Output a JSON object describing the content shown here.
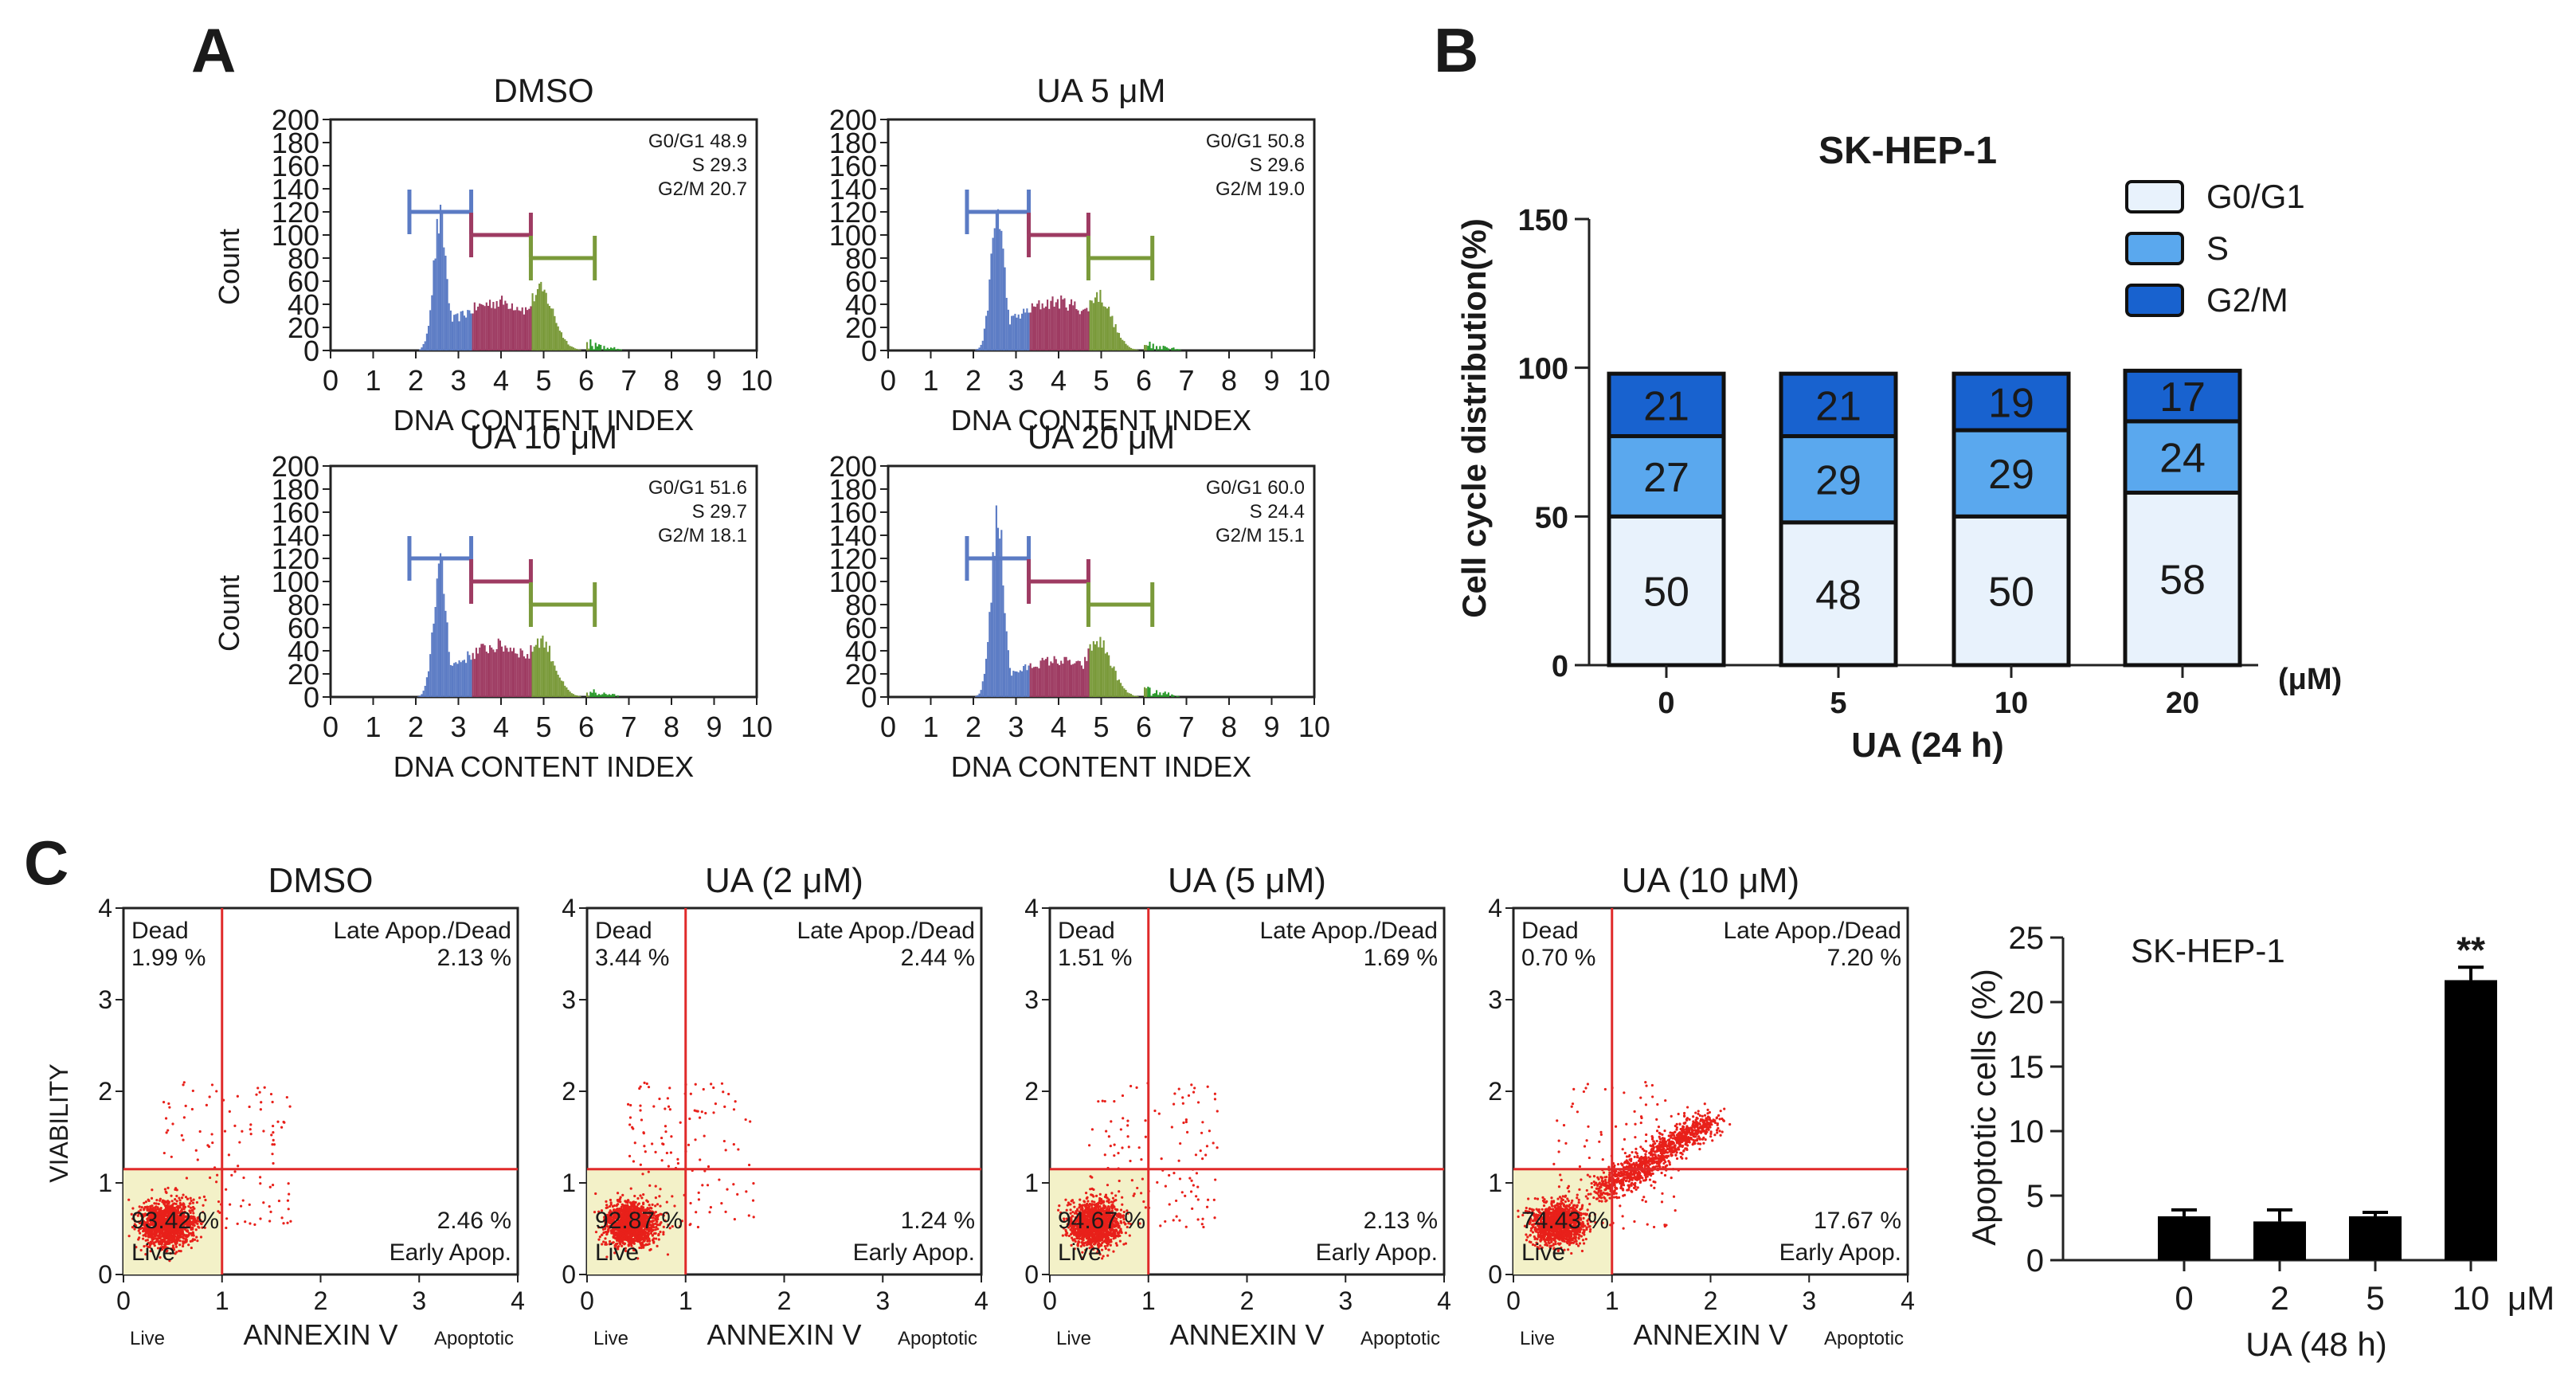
{
  "panel_labels": {
    "a": "A",
    "b": "B",
    "c": "C"
  },
  "colors": {
    "g1": "#5b7bc4",
    "s": "#9e3b62",
    "g2m": "#7a9a3a",
    "tail": "#2a9a2a",
    "g1_bar": "#e8f2fc",
    "s_bar": "#5aa8ee",
    "g2m_bar": "#1862cf",
    "dots": "#e8201a",
    "quad_line": "#e02a2a",
    "live_box": "#f3f1c8"
  },
  "chart_data": [
    {
      "type": "histogram",
      "panel": "A",
      "x_label": "DNA CONTENT INDEX",
      "y_label": "Count",
      "x_ticks": [
        "0",
        "1",
        "2",
        "3",
        "4",
        "5",
        "6",
        "7",
        "8",
        "9",
        "10"
      ],
      "y_ticks": [
        "0",
        "20",
        "40",
        "60",
        "80",
        "100",
        "120",
        "140",
        "160",
        "180",
        "200"
      ],
      "xlim": [
        0,
        10
      ],
      "ylim": [
        0,
        200
      ],
      "plots": [
        {
          "title": "DMSO",
          "stats": [
            "G0/G1 48.9",
            "S 29.3",
            "G2/M 20.7"
          ],
          "peak_x": 2.55,
          "peak_y": 112,
          "s_level": 40,
          "g2_peak_x": 4.9,
          "g2_peak_y": 52
        },
        {
          "title": "UA 5 μM",
          "stats": [
            "G0/G1 50.8",
            "S 29.6",
            "G2/M 19.0"
          ],
          "peak_x": 2.55,
          "peak_y": 120,
          "s_level": 40,
          "g2_peak_x": 4.9,
          "g2_peak_y": 48
        },
        {
          "title": "UA 10 μM",
          "stats": [
            "G0/G1 51.6",
            "S 29.7",
            "G2/M 18.1"
          ],
          "peak_x": 2.55,
          "peak_y": 112,
          "s_level": 42,
          "g2_peak_x": 4.9,
          "g2_peak_y": 50
        },
        {
          "title": "UA 20 μM",
          "stats": [
            "G0/G1 60.0",
            "S 24.4",
            "G2/M 15.1"
          ],
          "peak_x": 2.55,
          "peak_y": 150,
          "s_level": 30,
          "g2_peak_x": 4.9,
          "g2_peak_y": 48
        }
      ],
      "gates": [
        {
          "name": "G0/G1",
          "x_start": 1.85,
          "x_end": 3.3,
          "y": 120
        },
        {
          "name": "S",
          "x_start": 3.3,
          "x_end": 4.7,
          "y": 100
        },
        {
          "name": "G2/M",
          "x_start": 4.7,
          "x_end": 6.2,
          "y": 80
        }
      ]
    },
    {
      "type": "stacked_bar",
      "panel": "B",
      "title": "SK-HEP-1",
      "xlabel": "UA (24 h)",
      "ylabel": "Cell cycle distribution(%)",
      "unit_label": "(μM)",
      "categories": [
        "0",
        "5",
        "10",
        "20"
      ],
      "y_ticks": [
        "0",
        "50",
        "100",
        "150"
      ],
      "ylim": [
        0,
        150
      ],
      "series": [
        {
          "name": "G0/G1",
          "values": [
            50,
            48,
            50,
            58
          ]
        },
        {
          "name": "S",
          "values": [
            27,
            29,
            29,
            24
          ]
        },
        {
          "name": "G2/M",
          "values": [
            21,
            21,
            19,
            17
          ]
        }
      ],
      "legend_position": "top-right"
    },
    {
      "type": "scatter",
      "panel": "C",
      "x_label": "ANNEXIN V",
      "y_label": "VIABILITY",
      "x_ticks": [
        "0",
        "1",
        "2",
        "3",
        "4"
      ],
      "y_ticks": [
        "0",
        "1",
        "2",
        "3",
        "4"
      ],
      "xlim": [
        0,
        4
      ],
      "ylim": [
        0,
        4
      ],
      "gate_x": 1.0,
      "gate_y": 1.15,
      "sub_labels": {
        "live": "Live",
        "apoptotic": "Apoptotic"
      },
      "quadrant_labels": {
        "dead": "Dead",
        "late": "Late Apop./Dead",
        "early": "Early Apop.",
        "live": "Live"
      },
      "plots": [
        {
          "title": "DMSO",
          "dead": "1.99 %",
          "late": "2.13 %",
          "live_pct": "93.42 %",
          "early": "2.46 %",
          "spread": 0.55,
          "count": 1500
        },
        {
          "title": "UA (2 μM)",
          "dead": "3.44 %",
          "late": "2.44 %",
          "live_pct": "92.87 %",
          "early": "1.24 %",
          "spread": 0.6,
          "count": 1500
        },
        {
          "title": "UA (5 μM)",
          "dead": "1.51 %",
          "late": "1.69 %",
          "live_pct": "94.67 %",
          "early": "2.13 %",
          "spread": 0.55,
          "count": 1500
        },
        {
          "title": "UA (10 μM)",
          "dead": "0.70 %",
          "late": "7.20 %",
          "live_pct": "74.43 %",
          "early": "17.67 %",
          "spread": 1.4,
          "count": 2400
        }
      ]
    },
    {
      "type": "bar",
      "panel": "C",
      "title": "SK-HEP-1",
      "xlabel": "UA (48 h)",
      "ylabel": "Apoptotic cells (%)",
      "unit_label": "μM",
      "categories": [
        "0",
        "2",
        "5",
        "10"
      ],
      "values": [
        3.4,
        3.0,
        3.4,
        21.7
      ],
      "errors": [
        0.5,
        0.9,
        0.3,
        1.0
      ],
      "significance": [
        "",
        "",
        "",
        "**"
      ],
      "y_ticks": [
        "0",
        "5",
        "10",
        "15",
        "20",
        "25"
      ],
      "ylim": [
        0,
        25
      ]
    }
  ]
}
